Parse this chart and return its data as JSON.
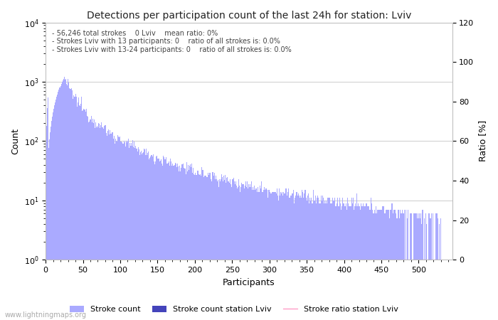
{
  "title": "Detections per participation count of the last 24h for station: Lviv",
  "xlabel": "Participants",
  "ylabel_left": "Count",
  "ylabel_right": "Ratio [%]",
  "annotation_lines": [
    "56,246 total strokes    0 Lviv    mean ratio: 0%",
    "Strokes Lviv with 13 participants: 0    ratio of all strokes is: 0.0%",
    "Strokes Lviv with 13-24 participants: 0    ratio of all strokes is: 0.0%"
  ],
  "bar_color": "#aaaaff",
  "bar_color_station": "#4444bb",
  "ratio_color": "#ff88bb",
  "background_color": "#ffffff",
  "grid_color": "#cccccc",
  "text_color": "#444444",
  "watermark": "www.lightningmaps.org",
  "legend_entries": [
    "Stroke count",
    "Stroke count station Lviv",
    "Stroke ratio station Lviv"
  ],
  "xlim": [
    0,
    545
  ],
  "ylim_log_min": 1,
  "ylim_log_max": 10000,
  "ratio_ylim": [
    0,
    120
  ],
  "ratio_yticks": [
    0,
    20,
    40,
    60,
    80,
    100,
    120
  ],
  "xticks": [
    0,
    50,
    100,
    150,
    200,
    250,
    300,
    350,
    400,
    450,
    500
  ],
  "figsize": [
    7.0,
    4.5
  ],
  "dpi": 100
}
